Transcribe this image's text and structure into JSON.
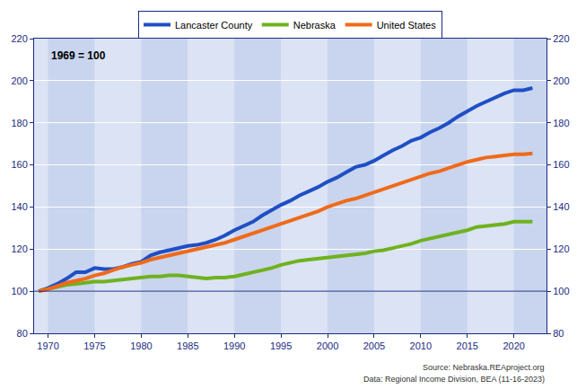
{
  "chart_data": {
    "type": "line",
    "annotations": [
      "1969 = 100"
    ],
    "source": [
      "Source: Nebraska.REAproject.org",
      "Data: Regional Income Division, BEA (11-16-2023)"
    ],
    "x": [
      1969,
      1970,
      1971,
      1972,
      1973,
      1974,
      1975,
      1976,
      1977,
      1978,
      1979,
      1980,
      1981,
      1982,
      1983,
      1984,
      1985,
      1986,
      1987,
      1988,
      1989,
      1990,
      1991,
      1992,
      1993,
      1994,
      1995,
      1996,
      1997,
      1998,
      1999,
      2000,
      2001,
      2002,
      2003,
      2004,
      2005,
      2006,
      2007,
      2008,
      2009,
      2010,
      2011,
      2012,
      2013,
      2014,
      2015,
      2016,
      2017,
      2018,
      2019,
      2020,
      2021,
      2022
    ],
    "series": [
      {
        "name": "Lancaster County",
        "color": "#1f4fc4",
        "values": [
          100,
          101.5,
          103.5,
          106,
          109,
          109,
          111,
          110.5,
          110.5,
          111.5,
          113,
          114,
          117,
          118.5,
          119.5,
          120.5,
          121.5,
          122,
          123,
          124.5,
          126.5,
          129,
          131,
          133,
          136,
          138.5,
          141,
          143,
          145.5,
          147.5,
          149.5,
          152,
          154,
          156.5,
          159,
          160,
          162,
          164.5,
          167,
          169,
          171.5,
          173,
          175.5,
          177.5,
          180,
          183,
          185.5,
          188,
          190,
          192,
          194,
          195.5,
          195.5,
          196.5
        ]
      },
      {
        "name": "Nebraska",
        "color": "#6fb21e",
        "values": [
          100,
          101,
          102,
          103,
          103.5,
          104,
          104.5,
          104.5,
          105,
          105.5,
          106,
          106.5,
          107,
          107,
          107.5,
          107.5,
          107,
          106.5,
          106,
          106.5,
          106.5,
          107,
          108,
          109,
          110,
          111,
          112.5,
          113.5,
          114.5,
          115,
          115.5,
          116,
          116.5,
          117,
          117.5,
          118,
          119,
          119.5,
          120.5,
          121.5,
          122.5,
          124,
          125,
          126,
          127,
          128,
          129,
          130.5,
          131,
          131.5,
          132,
          133,
          133,
          133
        ]
      },
      {
        "name": "United States",
        "color": "#f06a1a",
        "values": [
          100,
          101,
          102.5,
          104,
          105,
          106,
          107.5,
          108.5,
          110,
          111.5,
          112.5,
          113.5,
          115,
          116,
          117,
          118,
          119,
          120,
          121,
          122,
          123,
          124.5,
          126,
          127.5,
          129,
          130.5,
          132,
          133.5,
          135,
          136.5,
          138,
          140,
          141.5,
          143,
          144,
          145.5,
          147,
          148.5,
          150,
          151.5,
          153,
          154.5,
          156,
          157,
          158.5,
          160,
          161.5,
          162.5,
          163.5,
          164,
          164.5,
          165,
          165,
          165.5
        ]
      }
    ],
    "xlim": [
      1968.5,
      2023.5
    ],
    "xticks": [
      1970,
      1975,
      1980,
      1985,
      1990,
      1995,
      2000,
      2005,
      2010,
      2015,
      2020
    ],
    "ylim": [
      80,
      220
    ],
    "yticks": [
      80,
      100,
      120,
      140,
      160,
      180,
      200,
      220
    ],
    "grid": true,
    "legend": "top"
  }
}
